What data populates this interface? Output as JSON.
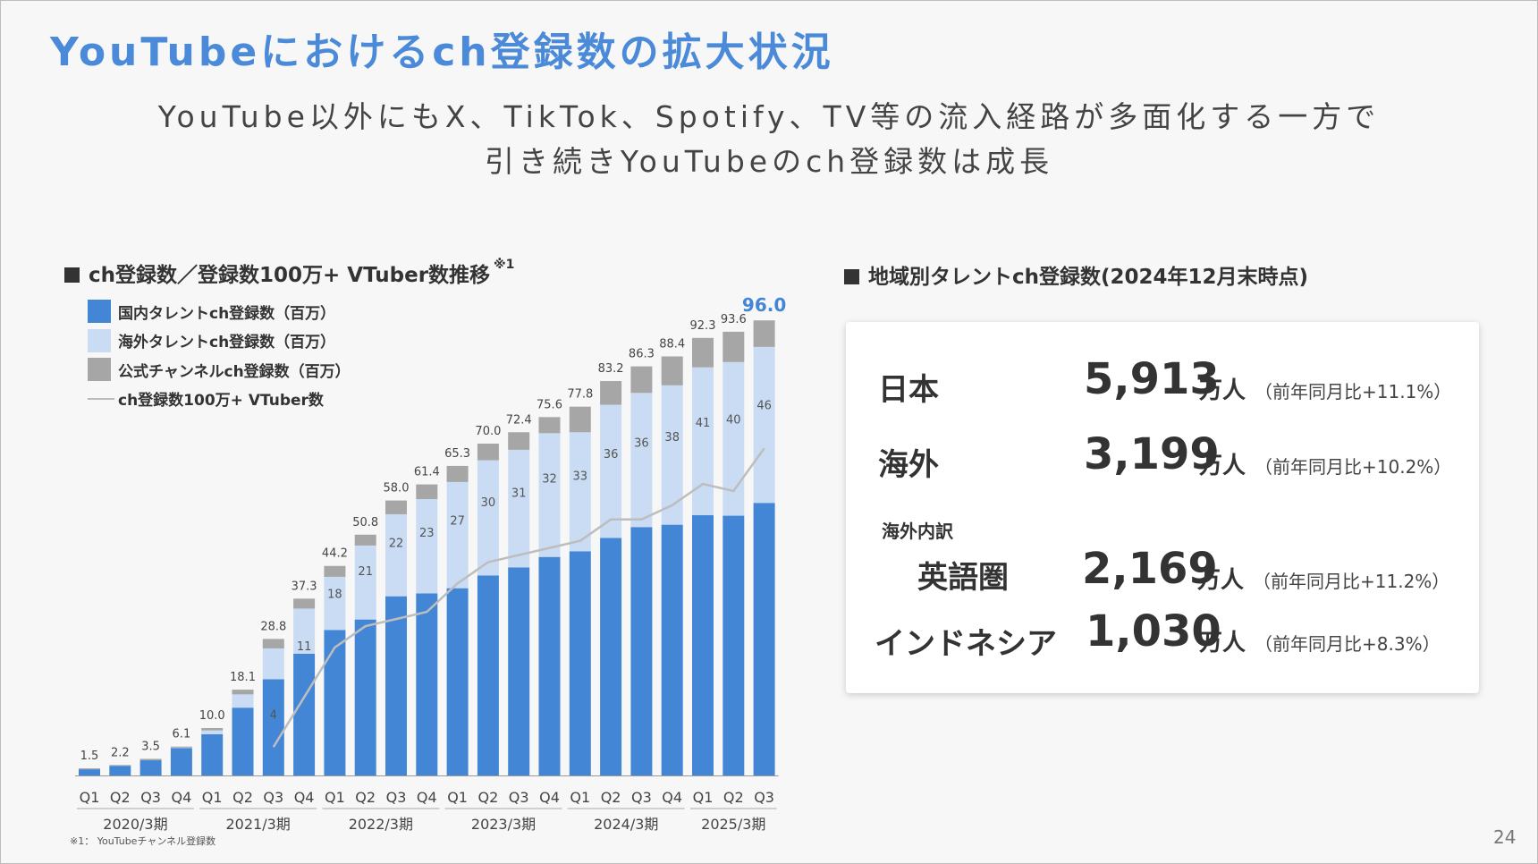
{
  "title": "YouTubeにおけるch登録数の拡大状況",
  "subtitle": {
    "line1": "YouTube以外にもX、TikTok、Spotify、TV等の流入経路が多面化する一方で",
    "line2": "引き続きYouTubeのch登録数は成長"
  },
  "left_section": {
    "heading": "ch登録数／登録数100万+ VTuber数推移",
    "note_mark": "※1"
  },
  "right_section": {
    "heading": "地域別タレントch登録数(2024年12月末時点)"
  },
  "colors": {
    "domestic": "#4486d6",
    "overseas": "#c9dcf3",
    "official": "#a6a6a6",
    "line": "#bdbdbd",
    "highlight": "#4486d6"
  },
  "chart_data": {
    "type": "bar",
    "stacked": true,
    "categories": [
      "Q1",
      "Q2",
      "Q3",
      "Q4",
      "Q1",
      "Q2",
      "Q3",
      "Q4",
      "Q1",
      "Q2",
      "Q3",
      "Q4",
      "Q1",
      "Q2",
      "Q3",
      "Q4",
      "Q1",
      "Q2",
      "Q3",
      "Q4",
      "Q1",
      "Q2",
      "Q3"
    ],
    "fiscal_groups": [
      {
        "label": "2020/3期",
        "start": 0,
        "end": 3
      },
      {
        "label": "2021/3期",
        "start": 4,
        "end": 7
      },
      {
        "label": "2022/3期",
        "start": 8,
        "end": 11
      },
      {
        "label": "2023/3期",
        "start": 12,
        "end": 15
      },
      {
        "label": "2024/3期",
        "start": 16,
        "end": 19
      },
      {
        "label": "2025/3期",
        "start": 20,
        "end": 22
      }
    ],
    "totals": [
      "1.5",
      "2.2",
      "3.5",
      "6.1",
      "10.0",
      "18.1",
      "28.8",
      "37.3",
      "44.2",
      "50.8",
      "58.0",
      "61.4",
      "65.3",
      "70.0",
      "72.4",
      "75.6",
      "77.8",
      "83.2",
      "86.3",
      "88.4",
      "92.3",
      "93.6",
      "96.0"
    ],
    "highlight_total_index": 22,
    "series": [
      {
        "name": "国内タレントch登録数（百万）",
        "values": [
          1.3,
          2.0,
          3.2,
          5.8,
          8.7,
          14.3,
          20.3,
          25.7,
          30.7,
          32.9,
          37.8,
          38.4,
          39.5,
          42.2,
          43.9,
          46.1,
          47.3,
          50.1,
          52.4,
          52.9,
          54.9,
          54.8,
          57.5
        ]
      },
      {
        "name": "海外タレントch登録数（百万）",
        "values": [
          0.0,
          0.0,
          0.0,
          0.1,
          0.8,
          2.8,
          6.5,
          9.5,
          11.2,
          15.6,
          17.3,
          19.9,
          22.4,
          24.3,
          24.8,
          26.1,
          25.1,
          28.1,
          28.3,
          29.4,
          31.2,
          32.4,
          32.9
        ]
      },
      {
        "name": "公式チャンネルch登録数（百万）",
        "values": [
          0.2,
          0.2,
          0.3,
          0.2,
          0.5,
          1.0,
          2.0,
          2.1,
          2.3,
          2.3,
          2.9,
          3.1,
          3.4,
          3.5,
          3.7,
          3.4,
          5.4,
          5.0,
          5.6,
          6.1,
          6.2,
          6.4,
          5.6
        ]
      }
    ],
    "series_labels": [
      {
        "index": 6,
        "text": "4"
      },
      {
        "index": 7,
        "text": "11"
      },
      {
        "index": 8,
        "text": "18"
      },
      {
        "index": 9,
        "text": "21"
      },
      {
        "index": 10,
        "text": "22"
      },
      {
        "index": 11,
        "text": "23"
      },
      {
        "index": 12,
        "text": "27"
      },
      {
        "index": 13,
        "text": "30"
      },
      {
        "index": 14,
        "text": "31"
      },
      {
        "index": 15,
        "text": "32"
      },
      {
        "index": 16,
        "text": "33"
      },
      {
        "index": 17,
        "text": "36"
      },
      {
        "index": 18,
        "text": "36"
      },
      {
        "index": 19,
        "text": "38"
      },
      {
        "index": 20,
        "text": "41"
      },
      {
        "index": 21,
        "text": "40"
      },
      {
        "index": 22,
        "text": "46"
      }
    ],
    "line_series": {
      "name": "ch登録数100万+ VTuber数",
      "start_index": 6,
      "values": [
        4,
        11,
        18,
        21,
        22,
        23,
        27,
        30,
        31,
        32,
        33,
        36,
        36,
        38,
        41,
        40,
        46
      ]
    },
    "ylim": [
      0,
      100
    ],
    "legend_position": "top-left"
  },
  "regions": [
    {
      "name": "日本",
      "value": "5,913",
      "unit": "万人",
      "yoy": "（前年同月比+11.1%）"
    },
    {
      "name": "海外",
      "value": "3,199",
      "unit": "万人",
      "yoy": "（前年同月比+10.2%）"
    }
  ],
  "overseas_breakdown_label": "海外内訳",
  "breakdown": [
    {
      "name": "英語圏",
      "value": "2,169",
      "unit": "万人",
      "yoy": "（前年同月比+11.2%）"
    },
    {
      "name": "インドネシア",
      "value": "1,030",
      "unit": "万人",
      "yoy": "（前年同月比+8.3%）"
    }
  ],
  "footnote": "※1： YouTubeチャンネル登録数",
  "page_number": "24"
}
